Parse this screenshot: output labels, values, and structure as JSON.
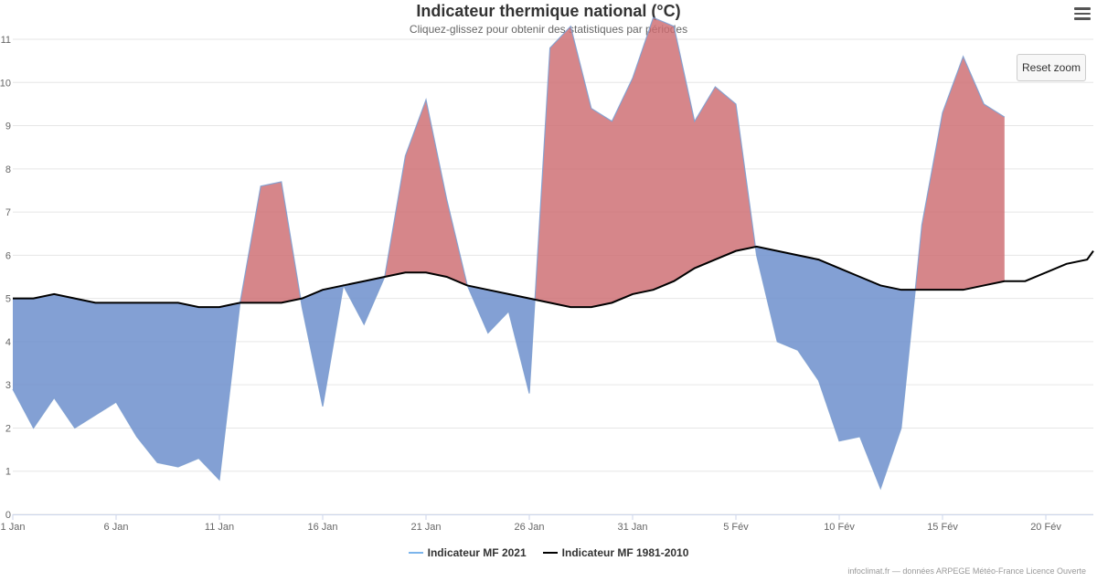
{
  "chart_data": {
    "type": "area",
    "title": "Indicateur thermique national (°C)",
    "subtitle": "Cliquez-glissez pour obtenir des statistiques par périodes",
    "xlabel": "",
    "ylabel": "",
    "ylim": [
      0,
      11
    ],
    "yticks": [
      0,
      1,
      2,
      3,
      4,
      5,
      6,
      7,
      8,
      9,
      10,
      11
    ],
    "xlim": [
      1,
      53.3
    ],
    "xticks": [
      {
        "day": 1,
        "label": "1 Jan"
      },
      {
        "day": 6,
        "label": "6 Jan"
      },
      {
        "day": 11,
        "label": "11 Jan"
      },
      {
        "day": 16,
        "label": "16 Jan"
      },
      {
        "day": 21,
        "label": "21 Jan"
      },
      {
        "day": 26,
        "label": "26 Jan"
      },
      {
        "day": 31,
        "label": "31 Jan"
      },
      {
        "day": 36,
        "label": "5 Fév"
      },
      {
        "day": 41,
        "label": "10 Fév"
      },
      {
        "day": 46,
        "label": "15 Fév"
      },
      {
        "day": 51,
        "label": "20 Fév"
      }
    ],
    "grid": true,
    "legend_position": "bottom-center",
    "series": [
      {
        "name": "Indicateur MF 2021",
        "color": "#7cb5ec",
        "warm_fill": "#cd6b70",
        "cold_fill": "#6d8fcd",
        "x": [
          1,
          2,
          3,
          4,
          5,
          6,
          7,
          8,
          9,
          10,
          11,
          12,
          13,
          14,
          15,
          16,
          17,
          18,
          19,
          20,
          21,
          22,
          23,
          24,
          25,
          26,
          27,
          28,
          29,
          30,
          31,
          32,
          33,
          34,
          35,
          36,
          37,
          38,
          39,
          40,
          41,
          42,
          43,
          44,
          45,
          46,
          47,
          48,
          49
        ],
        "values": [
          2.9,
          2.0,
          2.7,
          2.0,
          2.3,
          2.6,
          1.8,
          1.2,
          1.1,
          1.3,
          0.8,
          4.9,
          7.6,
          7.7,
          4.8,
          2.5,
          5.3,
          4.4,
          5.5,
          8.3,
          9.6,
          7.3,
          5.3,
          4.2,
          4.7,
          2.8,
          10.8,
          11.3,
          9.4,
          9.1,
          10.1,
          11.5,
          11.3,
          9.1,
          9.9,
          9.5,
          6.0,
          4.0,
          3.8,
          3.1,
          1.7,
          1.8,
          0.6,
          2.0,
          6.7,
          9.3,
          10.6,
          9.5,
          9.2
        ]
      },
      {
        "name": "Indicateur MF 1981-2010",
        "color": "#000000",
        "x": [
          1,
          2,
          3,
          4,
          5,
          6,
          7,
          8,
          9,
          10,
          11,
          12,
          13,
          14,
          15,
          16,
          17,
          18,
          19,
          20,
          21,
          22,
          23,
          24,
          25,
          26,
          27,
          28,
          29,
          30,
          31,
          32,
          33,
          34,
          35,
          36,
          37,
          38,
          39,
          40,
          41,
          42,
          43,
          44,
          45,
          46,
          47,
          48,
          49,
          50,
          51,
          52,
          53,
          53.3
        ],
        "values": [
          5.0,
          5.0,
          5.1,
          5.0,
          4.9,
          4.9,
          4.9,
          4.9,
          4.9,
          4.8,
          4.8,
          4.9,
          4.9,
          4.9,
          5.0,
          5.2,
          5.3,
          5.4,
          5.5,
          5.6,
          5.6,
          5.5,
          5.3,
          5.2,
          5.1,
          5.0,
          4.9,
          4.8,
          4.8,
          4.9,
          5.1,
          5.2,
          5.4,
          5.7,
          5.9,
          6.1,
          6.2,
          6.1,
          6.0,
          5.9,
          5.7,
          5.5,
          5.3,
          5.2,
          5.2,
          5.2,
          5.2,
          5.3,
          5.4,
          5.4,
          5.6,
          5.8,
          5.9,
          6.1
        ]
      }
    ],
    "reset_zoom_label": "Reset zoom",
    "credits": "infoclimat.fr — données ARPEGE Météo-France Licence Ouverte"
  }
}
